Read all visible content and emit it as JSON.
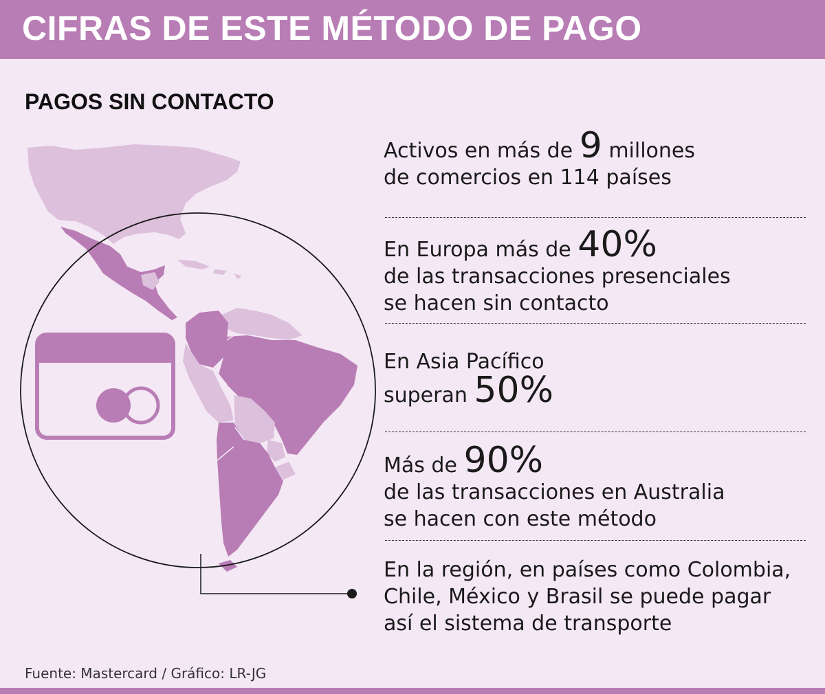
{
  "header": {
    "title": "CIFRAS DE ESTE MÉTODO DE PAGO"
  },
  "section": {
    "title": "PAGOS SIN CONTACTO"
  },
  "stats": {
    "s1": {
      "pre": "Activos en más de ",
      "big": "9",
      "post": " millones",
      "line2": "de comercios en 114 países"
    },
    "s2": {
      "pre": "En Europa más de ",
      "big": "40%",
      "line2": "de las transacciones presenciales",
      "line3": "se hacen sin contacto"
    },
    "s3": {
      "line1": "En Asia Pacífico",
      "pre": "superan ",
      "big": "50%"
    },
    "s4": {
      "pre": "Más de ",
      "big": "90%",
      "line2": "de las transacciones en Australia",
      "line3": "se hacen con este método"
    },
    "s5": {
      "line1": "En la región, en países como Colombia,",
      "line2": "Chile, México y Brasil se puede pagar",
      "line3": "así el sistema de transporte"
    }
  },
  "footer": {
    "source": "Fuente: Mastercard / Gráfico: LR-JG"
  },
  "colors": {
    "accent": "#b97db5",
    "light": "#dcc0dc",
    "background": "#f4e8f4"
  },
  "icons": [
    "contactless-card-icon",
    "americas-map-icon"
  ]
}
